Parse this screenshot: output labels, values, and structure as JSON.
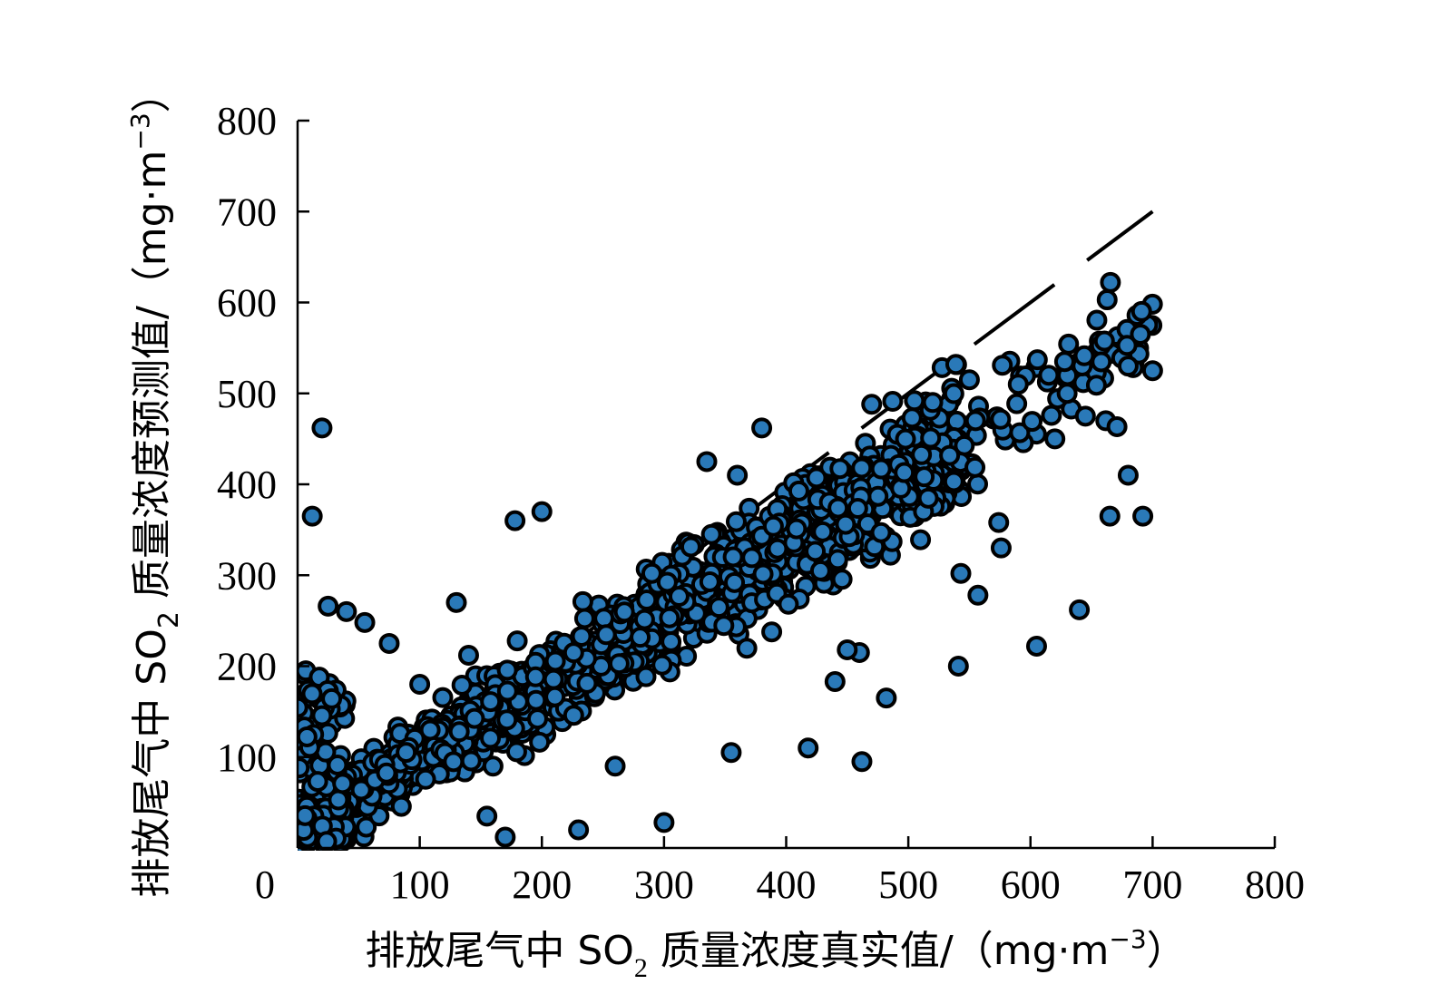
{
  "chart_data": {
    "type": "scatter",
    "title": "",
    "xlabel": {
      "prefix": "排放尾气中 SO",
      "sub": "2",
      "suffix": " 质量浓度真实值/（mg·m",
      "sup": "−3",
      "end": "）"
    },
    "ylabel": {
      "prefix": "排放尾气中 SO",
      "sub": "2",
      "suffix": " 质量浓度预测值/（mg·m",
      "sup": "−3",
      "end": "）"
    },
    "xlim": [
      0,
      800
    ],
    "ylim": [
      0,
      800
    ],
    "x_ticks": [
      0,
      100,
      200,
      300,
      400,
      500,
      600,
      700,
      800
    ],
    "y_ticks": [
      100,
      200,
      300,
      400,
      500,
      600,
      700,
      800
    ],
    "origin_label": "0",
    "grid": false,
    "marker": {
      "fill": "#2a79b8",
      "edge": "#000000"
    },
    "reference_line": {
      "style": "dashed",
      "color": "#000000",
      "x": [
        0,
        700
      ],
      "y": [
        0,
        700
      ]
    },
    "trend": {
      "slope": 0.78,
      "intercept": 22
    },
    "points": {
      "x": [
        12,
        20,
        335,
        360,
        380,
        290,
        160,
        140,
        470,
        505,
        615,
        700,
        680,
        690,
        590,
        620,
        630,
        645,
        665,
        680,
        692,
        640,
        605,
        418,
        355,
        462,
        482,
        541,
        543,
        557,
        574,
        576,
        550,
        555,
        520,
        25,
        40,
        55,
        75,
        100,
        130,
        155,
        170,
        260,
        300,
        230,
        178,
        200,
        440,
        460,
        450
      ],
      "y": [
        365,
        462,
        425,
        410,
        462,
        302,
        90,
        212,
        488,
        492,
        520,
        525,
        530,
        565,
        510,
        450,
        500,
        475,
        365,
        410,
        365,
        262,
        222,
        110,
        105,
        95,
        165,
        200,
        302,
        278,
        358,
        330,
        515,
        470,
        490,
        266,
        260,
        248,
        225,
        180,
        270,
        35,
        12,
        90,
        28,
        20,
        360,
        370,
        183,
        215,
        218
      ]
    }
  }
}
